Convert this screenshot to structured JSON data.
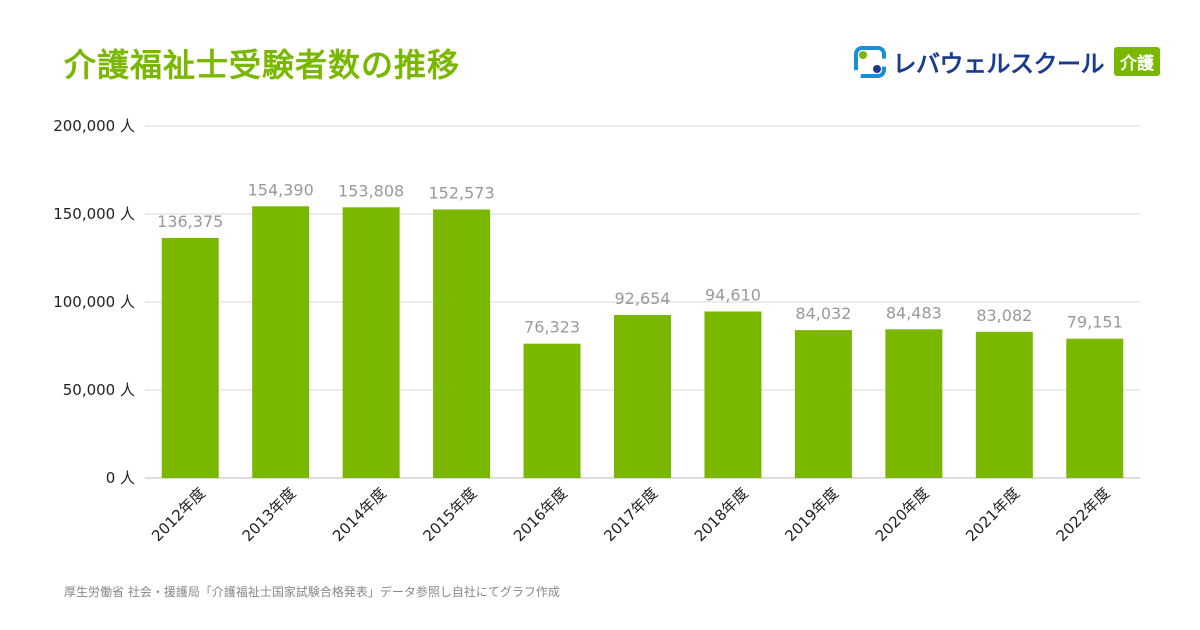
{
  "title": "介護福祉士受験者数の推移",
  "brand": {
    "name": "レバウェルスクール",
    "tag": "介護"
  },
  "source": "厚生労働省 社会・援護局「介護福祉士国家試験合格発表」データ参照し自社にてグラフ作成",
  "colors": {
    "bar": "#7ab800",
    "title": "#7ab800",
    "grid": "#d9d9d9",
    "value_label": "#999999",
    "axis_text": "#222222"
  },
  "chart_data": {
    "type": "bar",
    "categories": [
      "2012年度",
      "2013年度",
      "2014年度",
      "2015年度",
      "2016年度",
      "2017年度",
      "2018年度",
      "2019年度",
      "2020年度",
      "2021年度",
      "2022年度"
    ],
    "values": [
      136375,
      154390,
      153808,
      152573,
      76323,
      92654,
      94610,
      84032,
      84483,
      83082,
      79151
    ],
    "value_labels": [
      "136,375",
      "154,390",
      "153,808",
      "152,573",
      "76,323",
      "92,654",
      "94,610",
      "84,032",
      "84,483",
      "83,082",
      "79,151"
    ],
    "ylim": [
      0,
      200000
    ],
    "yticks": [
      0,
      50000,
      100000,
      150000,
      200000
    ],
    "ytick_labels": [
      "0 人",
      "50,000 人",
      "100,000 人",
      "150,000 人",
      "200,000 人"
    ],
    "grid": true,
    "legend": "none"
  }
}
